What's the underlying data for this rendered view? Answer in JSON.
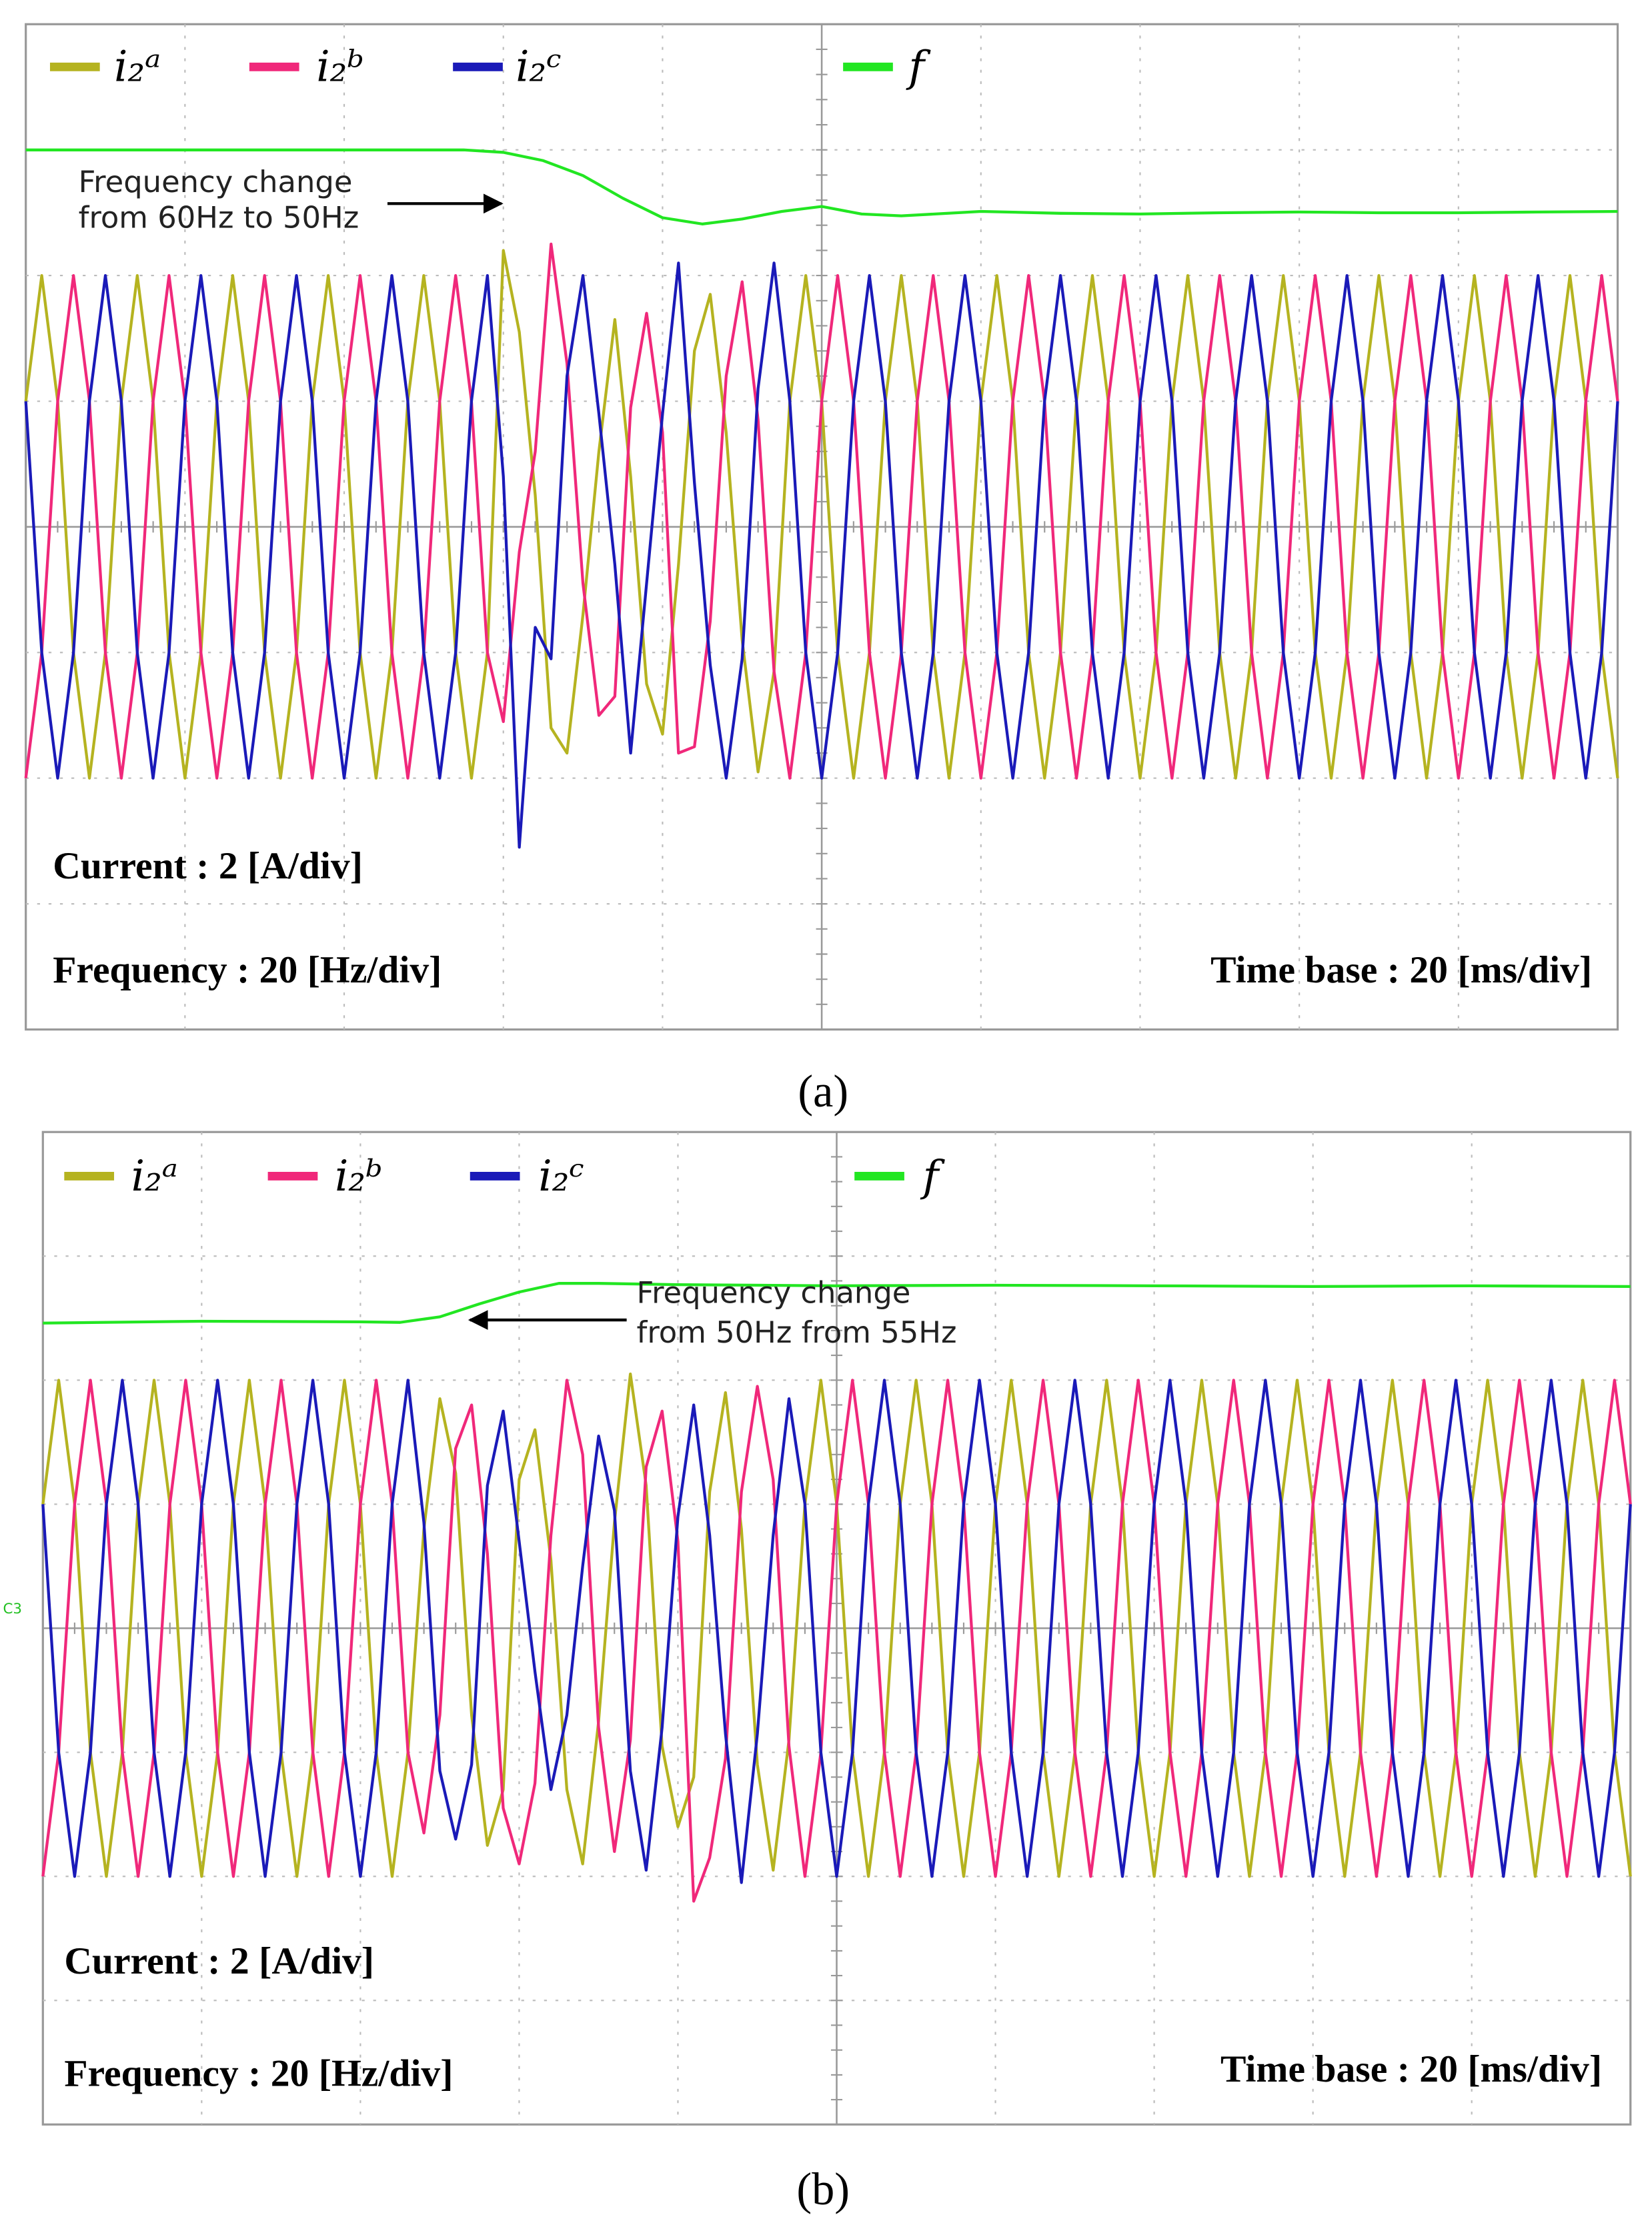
{
  "chart_data": [
    {
      "type": "line",
      "label": "(a)",
      "x": [
        0,
        2,
        4,
        6,
        8,
        10,
        12,
        14,
        16,
        18,
        20,
        22,
        24,
        26,
        28,
        30,
        32,
        34,
        36,
        38,
        40,
        42,
        44,
        46,
        48,
        50,
        52,
        54,
        56,
        58,
        60,
        62,
        64,
        66,
        68,
        70,
        72,
        74,
        76,
        78,
        80,
        82,
        84,
        86,
        88,
        90,
        92,
        94,
        96,
        98,
        100,
        102,
        104,
        106,
        108,
        110,
        112,
        114,
        116,
        118,
        120,
        122,
        124,
        126,
        128,
        130,
        132,
        134,
        136,
        138,
        140,
        142,
        144,
        146,
        148,
        150,
        152,
        154,
        156,
        158,
        160,
        162,
        164,
        166,
        168,
        170,
        172,
        174,
        176,
        178,
        180,
        182,
        184,
        186,
        188,
        190,
        192,
        194,
        196,
        198,
        200
      ],
      "xlim": [
        0,
        200
      ],
      "ylim": [
        -8,
        8
      ],
      "y2lim": [
        -80,
        80
      ],
      "series": [
        {
          "name": "i₂ᵃ",
          "color": "#b5b320",
          "values": [
            2,
            4,
            2,
            -2,
            -4,
            -2,
            2,
            4,
            2,
            -2,
            -4,
            -2,
            2,
            4,
            2,
            -2,
            -4,
            -2,
            2,
            4,
            2,
            -2,
            -4,
            -2,
            2,
            4,
            2,
            -2,
            -4,
            -2,
            4.4,
            3.1,
            0.5,
            -3.2,
            -3.6,
            -1.4,
            1.2,
            3.3,
            0.8,
            -2.5,
            -3.3,
            -0.6,
            2.8,
            3.7,
            1.5,
            -1.8,
            -3.9,
            -2.3,
            2,
            4,
            2,
            -2,
            -4,
            -2,
            2,
            4,
            2,
            -2,
            -4,
            -2,
            2,
            4,
            2,
            -2,
            -4,
            -2,
            2,
            4,
            2,
            -2,
            -4,
            -2,
            2,
            4,
            2,
            -2,
            -4,
            -2,
            2,
            4,
            2,
            -2,
            -4,
            -2,
            2,
            4,
            2,
            -2,
            -4,
            -2,
            2,
            4,
            2,
            -2,
            -4,
            -2,
            2,
            4,
            2,
            -2,
            -4
          ]
        },
        {
          "name": "i₂ᵇ",
          "color": "#f0287a",
          "values": [
            -4,
            -2,
            2,
            4,
            2,
            -2,
            -4,
            -2,
            2,
            4,
            2,
            -2,
            -4,
            -2,
            2,
            4,
            2,
            -2,
            -4,
            -2,
            2,
            4,
            2,
            -2,
            -4,
            -2,
            2,
            4,
            2,
            -2,
            -3.1,
            -0.4,
            1.2,
            4.5,
            2.6,
            -0.9,
            -3.0,
            -2.7,
            1.9,
            3.4,
            1.5,
            -3.6,
            -3.5,
            -1.5,
            2.4,
            3.9,
            1.7,
            -2.3,
            -4,
            -2,
            2,
            4,
            2,
            -2,
            -4,
            -2,
            2,
            4,
            2,
            -2,
            -4,
            -2,
            2,
            4,
            2,
            -2,
            -4,
            -2,
            2,
            4,
            2,
            -2,
            -4,
            -2,
            2,
            4,
            2,
            -2,
            -4,
            -2,
            2,
            4,
            2,
            -2,
            -4,
            -2,
            2,
            4,
            2,
            -2,
            -4,
            -2,
            2,
            4,
            2,
            -2,
            -4,
            -2,
            2,
            4,
            2
          ]
        },
        {
          "name": "i₂ᶜ",
          "color": "#1a1ab8",
          "values": [
            2,
            -2,
            -4,
            -2,
            2,
            4,
            2,
            -2,
            -4,
            -2,
            2,
            4,
            2,
            -2,
            -4,
            -2,
            2,
            4,
            2,
            -2,
            -4,
            -2,
            2,
            4,
            2,
            -2,
            -4,
            -2,
            2,
            4,
            0.8,
            -5.1,
            -1.6,
            -2.1,
            2.4,
            4.0,
            1.8,
            -0.6,
            -3.6,
            -0.9,
            1.8,
            4.2,
            0.7,
            -2.2,
            -4.0,
            -2.1,
            2.2,
            4.2,
            2,
            -2,
            -4,
            -2,
            2,
            4,
            2,
            -2,
            -4,
            -2,
            2,
            4,
            2,
            -2,
            -4,
            -2,
            2,
            4,
            2,
            -2,
            -4,
            -2,
            2,
            4,
            2,
            -2,
            -4,
            -2,
            2,
            4,
            2,
            -2,
            -4,
            -2,
            2,
            4,
            2,
            -2,
            -4,
            -2,
            2,
            4,
            2,
            -2,
            -4,
            -2,
            2,
            4,
            2,
            -2,
            -4,
            -2,
            2
          ]
        },
        {
          "name": "f",
          "color": "#22e622",
          "axis": "y2",
          "x": [
            0,
            30,
            55,
            60,
            65,
            70,
            75,
            80,
            85,
            90,
            95,
            100,
            105,
            110,
            120,
            130,
            140,
            150,
            160,
            170,
            180,
            190,
            200
          ],
          "values": [
            60,
            60,
            60,
            59.6,
            58.3,
            55.9,
            52.3,
            49.2,
            48.2,
            49,
            50.2,
            51,
            49.8,
            49.5,
            50.2,
            49.9,
            49.8,
            50,
            50.1,
            50,
            50,
            50.1,
            50.2
          ]
        }
      ],
      "annotation": [
        "Frequency change",
        "from 60Hz to 50Hz"
      ],
      "notes": [
        "Current : 2 [A/div]",
        "Frequency : 20 [Hz/div]",
        "Time base : 20 [ms/div]"
      ]
    },
    {
      "type": "line",
      "label": "(b)",
      "x": [
        0,
        2,
        4,
        6,
        8,
        10,
        12,
        14,
        16,
        18,
        20,
        22,
        24,
        26,
        28,
        30,
        32,
        34,
        36,
        38,
        40,
        42,
        44,
        46,
        48,
        50,
        52,
        54,
        56,
        58,
        60,
        62,
        64,
        66,
        68,
        70,
        72,
        74,
        76,
        78,
        80,
        82,
        84,
        86,
        88,
        90,
        92,
        94,
        96,
        98,
        100,
        102,
        104,
        106,
        108,
        110,
        112,
        114,
        116,
        118,
        120,
        122,
        124,
        126,
        128,
        130,
        132,
        134,
        136,
        138,
        140,
        142,
        144,
        146,
        148,
        150,
        152,
        154,
        156,
        158,
        160,
        162,
        164,
        166,
        168,
        170,
        172,
        174,
        176,
        178,
        180,
        182,
        184,
        186,
        188,
        190,
        192,
        194,
        196,
        198,
        200
      ],
      "xlim": [
        0,
        200
      ],
      "ylim": [
        -8,
        8
      ],
      "y2lim": [
        -80,
        80
      ],
      "series": [
        {
          "name": "i₂ᵃ",
          "color": "#b5b320",
          "values": [
            2,
            4,
            2,
            -2,
            -4,
            -2,
            2,
            4,
            2,
            -2,
            -4,
            -2,
            2,
            4,
            2,
            -2,
            -4,
            -2,
            2,
            4,
            2,
            -2,
            -4,
            -2,
            1.6,
            3.7,
            2.5,
            -1.4,
            -3.5,
            -2.6,
            2.4,
            3.2,
            1.1,
            -2.6,
            -3.8,
            -1.5,
            1.7,
            4.1,
            2.3,
            -1.9,
            -3.2,
            -2.4,
            2.2,
            3.8,
            1.6,
            -2.2,
            -3.9,
            -1.8,
            2,
            4,
            2,
            -2,
            -4,
            -2,
            2,
            4,
            2,
            -2,
            -4,
            -2,
            2,
            4,
            2,
            -2,
            -4,
            -2,
            2,
            4,
            2,
            -2,
            -4,
            -2,
            2,
            4,
            2,
            -2,
            -4,
            -2,
            2,
            4,
            2,
            -2,
            -4,
            -2,
            2,
            4,
            2,
            -2,
            -4,
            -2,
            2,
            4,
            2,
            -2,
            -4,
            -2,
            2,
            4,
            2,
            -2,
            -4
          ]
        },
        {
          "name": "i₂ᵇ",
          "color": "#f0287a",
          "values": [
            -4,
            -2,
            2,
            4,
            2,
            -2,
            -4,
            -2,
            2,
            4,
            2,
            -2,
            -4,
            -2,
            2,
            4,
            2,
            -2,
            -4,
            -2,
            2,
            4,
            2,
            -2,
            -3.3,
            -1.4,
            2.9,
            3.6,
            1.2,
            -2.9,
            -3.8,
            -2.5,
            1.5,
            4.0,
            2.8,
            -1.6,
            -3.6,
            -1.8,
            2.6,
            3.5,
            1.4,
            -4.4,
            -3.7,
            -2.1,
            2.2,
            3.9,
            2.4,
            -1.9,
            -4,
            -2,
            2,
            4,
            2,
            -2,
            -4,
            -2,
            2,
            4,
            2,
            -2,
            -4,
            -2,
            2,
            4,
            2,
            -2,
            -4,
            -2,
            2,
            4,
            2,
            -2,
            -4,
            -2,
            2,
            4,
            2,
            -2,
            -4,
            -2,
            2,
            4,
            2,
            -2,
            -4,
            -2,
            2,
            4,
            2,
            -2,
            -4,
            -2,
            2,
            4,
            2,
            -2,
            -4,
            -2,
            2,
            4,
            2
          ]
        },
        {
          "name": "i₂ᶜ",
          "color": "#1a1ab8",
          "values": [
            2,
            -2,
            -4,
            -2,
            2,
            4,
            2,
            -2,
            -4,
            -2,
            2,
            4,
            2,
            -2,
            -4,
            -2,
            2,
            4,
            2,
            -2,
            -4,
            -2,
            2,
            4,
            1.7,
            -2.3,
            -3.4,
            -2.2,
            2.3,
            3.5,
            1.4,
            -0.7,
            -2.6,
            -1.4,
            1.0,
            3.1,
            1.9,
            -2.3,
            -3.9,
            -1.6,
            1.8,
            3.6,
            1.5,
            -1.7,
            -4.1,
            -1.7,
            1.5,
            3.7,
            2,
            -2,
            -4,
            -2,
            2,
            4,
            2,
            -2,
            -4,
            -2,
            2,
            4,
            2,
            -2,
            -4,
            -2,
            2,
            4,
            2,
            -2,
            -4,
            -2,
            2,
            4,
            2,
            -2,
            -4,
            -2,
            2,
            4,
            2,
            -2,
            -4,
            -2,
            2,
            4,
            2,
            -2,
            -4,
            -2,
            2,
            4,
            2,
            -2,
            -4,
            -2,
            2,
            4,
            2,
            -2,
            -4,
            -2,
            2
          ]
        },
        {
          "name": "f",
          "color": "#22e622",
          "axis": "y2",
          "x": [
            0,
            20,
            40,
            45,
            50,
            55,
            60,
            65,
            70,
            80,
            100,
            120,
            140,
            160,
            180,
            200
          ],
          "values": [
            49.2,
            49.5,
            49.4,
            49.3,
            50.2,
            52.3,
            54.2,
            55.6,
            55.6,
            55.4,
            55.2,
            55.3,
            55.2,
            55.1,
            55.2,
            55.1
          ]
        }
      ],
      "annotation": [
        "Frequency change",
        "from 50Hz from 55Hz"
      ],
      "marker_label": "C3",
      "notes": [
        "Current : 2 [A/div]",
        "Frequency : 20 [Hz/div]",
        "Time base : 20 [ms/div]"
      ]
    }
  ]
}
